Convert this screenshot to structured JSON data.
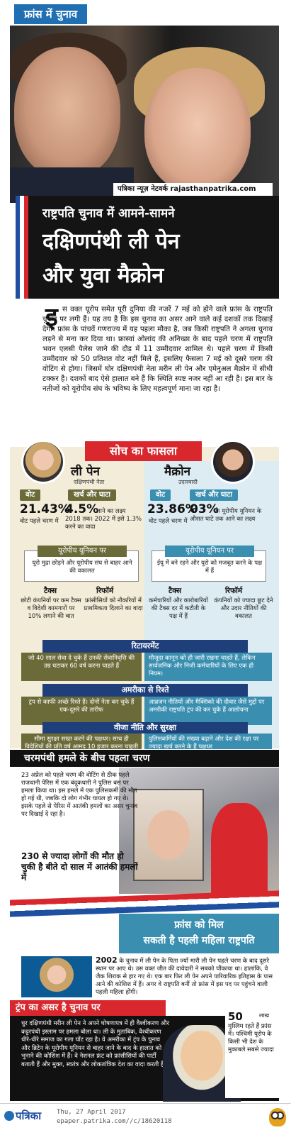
{
  "header": {
    "tag": "फ्रांस में चुनाव"
  },
  "photo": {
    "credit": "पत्रिका न्यूज़ नेटवर्क rajasthanpatrika.com"
  },
  "headline": {
    "kicker": "राष्ट्रपति चुनाव में आमने-सामने",
    "line1": "दक्षिणपंथी ली पेन",
    "line2": "और युवा मैक्रोन"
  },
  "intro": {
    "dropcap": "इ",
    "text": "स वक्त यूरोप समेत पूरी दुनिया की नजरें 7 मई को होने वाले फ्रांस के राष्ट्रपति चुनाव पर लगी हैं। यह तय है कि इस चुनाव का असर आने वाले कई दशकों तक दिखाई देगा। फ्रांस के पांचवें गणराज्य में यह पहला मौका है, जब किसी राष्ट्रपति ने अगला चुनाव लड़ने से मना कर दिया था। फ्रास्वां ओलांद की अनिच्छा के बाद पहले चरण में राष्ट्रपति भवन एलसी पैलेस जाने की दौड़ में 11 उम्मीदवार शामिल थे। पहले चरण में किसी उम्मीदवार को 50 प्रतिशत वोट नहीं मिले हैं, इसलिए फैसला 7 मई को दूसरे चरण की वोटिंग से होगा। जिसमें घोर दक्षिणपंथी नेता मरीन ली पेन और एमेनुअल मैक्रोन में सीधी टक्कर है। दशकों बाद ऐसे हालात बने हैं कि स्थिति स्पष्ट नजर नहीं आ रही है। इस बार के नतीजों को यूरोपीय संघ के भविष्य के लिए महत्वपूर्ण माना जा रहा है।"
  },
  "compare": {
    "title": "सोच का फासला",
    "left": {
      "name": "ली पेन",
      "party": "दक्षिणपंथी नेता",
      "vote_label": "वोट",
      "vote_value": "21.43%",
      "vote_desc": "वोट पहले चरण में",
      "deficit_label": "खर्च और घाटा",
      "deficit_value": "4.5%",
      "deficit_desc": "लाने का लक्ष्य 2018 तक। 2022 में इसे 1.3% करने का वादा",
      "eu_head": "यूरोपीय यूनियन पर",
      "eu_text": "यूरो मुद्रा छोड़ने और यूरोपीय संघ से बाहर आने की वकालत",
      "tax_head": "टैक्स",
      "tax_text": "छोटी कंपनियों पर कम टैक्स व विदेशी कामगारों पर 10% लगाने की बात",
      "reform_head": "रिफॉर्म",
      "reform_text": "फ्रांसीसियों को नौकरियों में प्राथमिकता दिलाने का वादा"
    },
    "right": {
      "name": "मैक्रोन",
      "party": "उदारवादी",
      "vote_label": "वोट",
      "vote_value": "23.86%",
      "vote_desc": "वोट पहले चरण में",
      "deficit_label": "खर्च और घाटा",
      "deficit_value": "03%",
      "deficit_desc": "के यूरोपीय यूनियन के औसत घाटे तक आने का लक्ष्य",
      "eu_head": "यूरोपीय यूनियन पर",
      "eu_text": "ईयू में बने रहने और यूरो को मजबूत करने के पक्ष में हैं",
      "tax_head": "टैक्स",
      "tax_text": "कर्मचारियों और कारोबारियों की टैक्स दर में कटौती के पक्ष में हैं",
      "reform_head": "रिफॉर्म",
      "reform_text": "कंपनियों को ज्यादा छूट देने और उदार नीतियों की वकालत"
    },
    "rows": [
      {
        "head": "रिटायरमेंट",
        "left": "जो 40 साल सेवा दे चुके हैं उनकी सेवानिवृत्ति की उम्र घटाकर 60 वर्ष करना चाहते हैं",
        "right": "मौजूदा कानून को ही जारी रखना चाहते हैं, लेकिन सार्वजनिक और निजी कर्मचारियों के लिए एक ही नियम।"
      },
      {
        "head": "अमरीका से रिश्ते",
        "left": "ट्रंप से काफी अच्छे रिश्ते हैं। दोनों नेता कर चुके हैं एक-दूसरे की तारीफ",
        "right": "आव्रजन नीतियों और मैक्सिको की दीवार जैसे मुद्दों पर अमरीकी राष्ट्रपति ट्रंप की कर चुके हैं आलोचना"
      },
      {
        "head": "वीजा नीति और सुरक्षा",
        "left": "सीमा सुरक्षा सख्त करने की पक्षधर। साथ ही विदेशियों की प्रति वर्ष आमद 10 हजार करना चाहती हैं।",
        "right": "पुलिसकर्मियों की संख्या बढ़ाने और देश की रक्षा पर ज्यादा खर्च करने के हैं पक्षधर"
      }
    ]
  },
  "attack": {
    "title": "चरमपंथी हमले के बीच पहला चरण",
    "text": "23 अप्रेल को पहले चरण की वोटिंग से ठीक पहले राजधानी पेरिस में एक बंदूकधारी ने पुलिस बस पर हमला किया था। इस हमले में एक पुलिसकर्मी की मौत हो गई थी, जबकि दो लोग गंभीर घायल हो गए थे। इसके पहले से पेरिस में आतंकी हमलों का असर चुनाव पर दिखाई दे रहा है।",
    "big": "230 से ज्यादा लोगों की मौत हो चुकी है बीते दो साल में आतंकी हमलों में"
  },
  "first_woman": {
    "line1": "फ्रांस को मिल",
    "line2": "सकती है पहली महिला राष्ट्रपति",
    "year": "2002",
    "text": "के चुनाव में ली पेन के पिता ज्याँ मारी ली पेन पहले चरण के बाद दूसरे स्थान पर आए थे। उस वक्त जीत की दावेदारी ने सबको चौंकाया था। हालांकि, वे जैक शिराक से हार गए थे। एक बार फिर ली पेन अपने पारिवारिक इतिहास के पास आने की कोशिश में हैं। अगर वे राष्ट्रपति बनीं तो फ्रांस में इस पद पर पहुंचने वाली पहली महिला होंगी।"
  },
  "trump": {
    "title": "ट्रंप का असर है चुनाव पर",
    "text": "धुर दक्षिणपंथी मरीन ली पेन ने अपने घोषणापत्र में ही वैश्वीकरण और कट्टरपंथी इस्लाम पर हमला बोला था। ली के मुताबिक, वैश्वीकरण धीरे-धीरे समाज का गला घोंट रहा है। वे अमरीका में ट्रंप के चुनाव और ब्रिटेन के यूरोपीय यूनियन से बाहर जाने के बाद के हालात को भुनाने की कोशिश में हैं। वे नेशनल फ्रंट को फ्रांसीसियों की पार्टी बताती हैं और मुक्त, स्वतंत्र और लोकतांत्रिक देश का वादा करती हैं।",
    "stat_num": "50",
    "stat_unit": "लाख",
    "stat_text": "मुस्लिम रहते हैं फ्रांस में। पश्चिमी यूरोप के किसी भी देश के मुकाबले सबसे ज्यादा"
  },
  "footer": {
    "brand": "पत्रिका",
    "date": "Thu, 27 April 2017",
    "url": "epaper.patrika.com//c/18620118"
  }
}
